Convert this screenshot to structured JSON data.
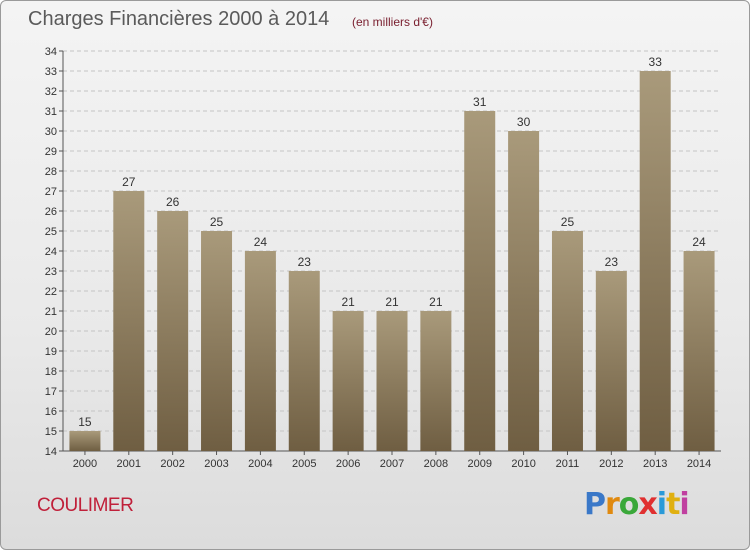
{
  "header": {
    "title": "Charges Financières 2000 à 2014",
    "subtitle": "(en milliers d'€)"
  },
  "footer": {
    "commune": "COULIMER",
    "logo_text": "Proxiti"
  },
  "colors": {
    "bar_top": "#a99a7b",
    "bar_bottom": "#6f5e42",
    "grid": "#c4c4c4"
  },
  "chart_data": {
    "type": "bar",
    "title": "Charges Financières 2000 à 2014",
    "subtitle": "(en milliers d'€)",
    "xlabel": "",
    "ylabel": "",
    "categories": [
      "2000",
      "2001",
      "2002",
      "2003",
      "2004",
      "2005",
      "2006",
      "2007",
      "2008",
      "2009",
      "2010",
      "2011",
      "2012",
      "2013",
      "2014"
    ],
    "values": [
      15,
      27,
      26,
      25,
      24,
      23,
      21,
      21,
      21,
      31,
      30,
      25,
      23,
      33,
      24
    ],
    "ylim": [
      14,
      34
    ],
    "yticks": [
      14,
      15,
      16,
      17,
      18,
      19,
      20,
      21,
      22,
      23,
      24,
      25,
      26,
      27,
      28,
      29,
      30,
      31,
      32,
      33,
      34
    ],
    "grid": "horizontal dashed",
    "data_labels": true
  }
}
